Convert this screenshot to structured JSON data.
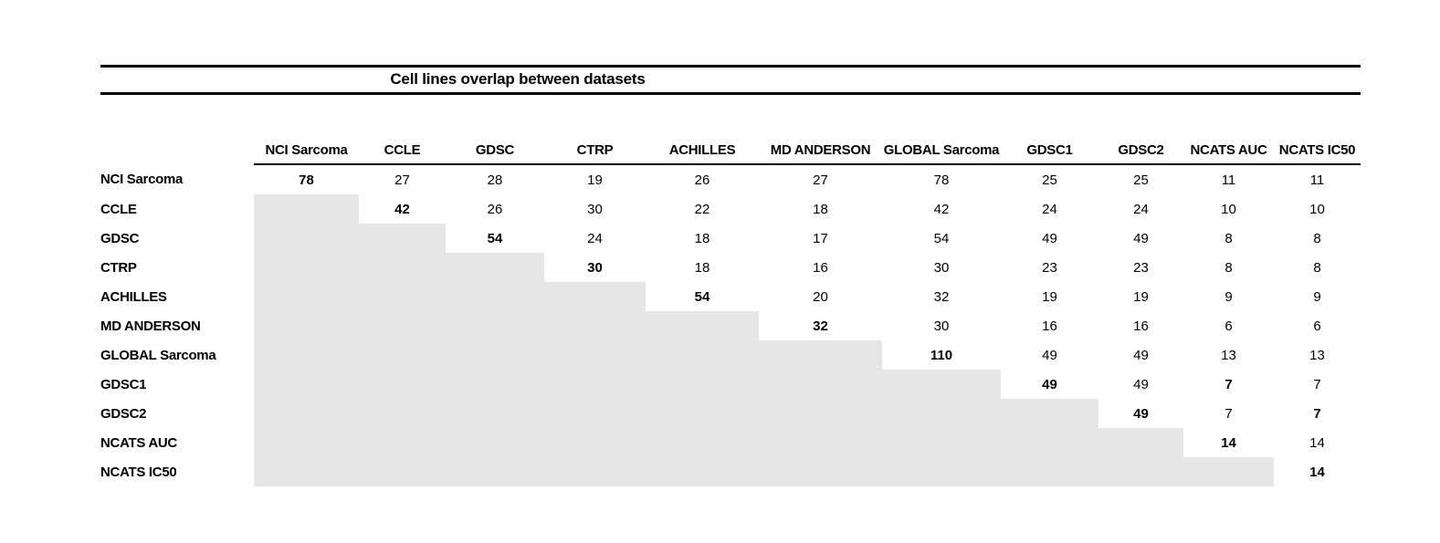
{
  "title": "Cell lines overlap between datasets",
  "colors": {
    "shaded_cell": "#e7e6e6",
    "text": "#000000",
    "rule": "#000000",
    "background": "#ffffff"
  },
  "chart_data": {
    "type": "table",
    "title": "Cell lines overlap between datasets",
    "columns": [
      "NCI Sarcoma",
      "CCLE",
      "GDSC",
      "CTRP",
      "ACHILLES",
      "MD ANDERSON",
      "GLOBAL Sarcoma",
      "GDSC1",
      "GDSC2",
      "NCATS AUC",
      "NCATS IC50"
    ],
    "rows": [
      {
        "label": "NCI Sarcoma",
        "values": [
          78,
          27,
          28,
          19,
          26,
          27,
          78,
          25,
          25,
          11,
          11
        ]
      },
      {
        "label": "CCLE",
        "values": [
          null,
          42,
          26,
          30,
          22,
          18,
          42,
          24,
          24,
          10,
          10
        ]
      },
      {
        "label": "GDSC",
        "values": [
          null,
          null,
          54,
          24,
          18,
          17,
          54,
          49,
          49,
          8,
          8
        ]
      },
      {
        "label": "CTRP",
        "values": [
          null,
          null,
          null,
          30,
          18,
          16,
          30,
          23,
          23,
          8,
          8
        ]
      },
      {
        "label": "ACHILLES",
        "values": [
          null,
          null,
          null,
          null,
          54,
          20,
          32,
          19,
          19,
          9,
          9
        ]
      },
      {
        "label": "MD ANDERSON",
        "values": [
          null,
          null,
          null,
          null,
          null,
          32,
          30,
          16,
          16,
          6,
          6
        ]
      },
      {
        "label": "GLOBAL Sarcoma",
        "values": [
          null,
          null,
          null,
          null,
          null,
          null,
          110,
          49,
          49,
          13,
          13
        ]
      },
      {
        "label": "GDSC1",
        "values": [
          null,
          null,
          null,
          null,
          null,
          null,
          null,
          49,
          49,
          7,
          7
        ]
      },
      {
        "label": "GDSC2",
        "values": [
          null,
          null,
          null,
          null,
          null,
          null,
          null,
          null,
          49,
          7,
          7
        ]
      },
      {
        "label": "NCATS AUC",
        "values": [
          null,
          null,
          null,
          null,
          null,
          null,
          null,
          null,
          null,
          14,
          14
        ]
      },
      {
        "label": "NCATS IC50",
        "values": [
          null,
          null,
          null,
          null,
          null,
          null,
          null,
          null,
          null,
          null,
          14
        ]
      }
    ],
    "bold_cells": [
      [
        0,
        0
      ],
      [
        1,
        1
      ],
      [
        2,
        2
      ],
      [
        3,
        3
      ],
      [
        4,
        4
      ],
      [
        5,
        5
      ],
      [
        6,
        6
      ],
      [
        7,
        7
      ],
      [
        7,
        9
      ],
      [
        8,
        8
      ],
      [
        8,
        10
      ],
      [
        9,
        9
      ],
      [
        10,
        10
      ]
    ],
    "layout_hints": {
      "shaded_region": "strict lower triangle (cells below diagonal) shaded gray, no values",
      "diagonal": "bold self-overlap counts",
      "header_underline": "single rule under data columns only",
      "title_rules": "thick rule above and below title"
    }
  }
}
